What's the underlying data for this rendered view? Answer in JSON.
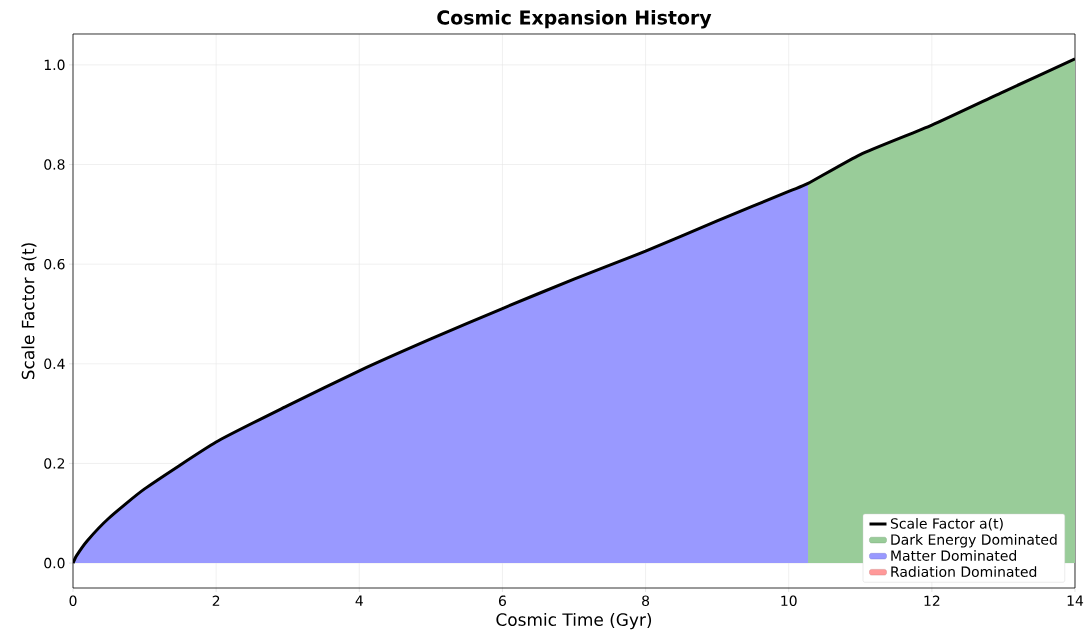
{
  "chart_data": {
    "type": "line",
    "title": "Cosmic Expansion History",
    "xlabel": "Cosmic Time (Gyr)",
    "ylabel": "Scale Factor a(t)",
    "xlim": [
      0,
      14
    ],
    "ylim": [
      -0.05,
      1.062
    ],
    "xticks": [
      0,
      2,
      4,
      6,
      8,
      10,
      12,
      14
    ],
    "yticks": [
      {
        "value": 0,
        "label": "0.0"
      },
      {
        "value": 0.2,
        "label": "0.2"
      },
      {
        "value": 0.4,
        "label": "0.4"
      },
      {
        "value": 0.6,
        "label": "0.6"
      },
      {
        "value": 0.8,
        "label": "0.8"
      },
      {
        "value": 1,
        "label": "1.0"
      }
    ],
    "grid": true,
    "legend": "bottom right",
    "marker": "none",
    "line_style": "solid",
    "series": [
      {
        "name": "Scale Factor a(t)",
        "color": "#000000",
        "x": [
          0,
          0.05,
          0.2,
          0.5,
          1,
          2,
          3,
          4,
          5,
          6,
          7,
          8,
          9,
          10,
          10.27,
          11,
          12,
          13,
          14
        ],
        "values": [
          0,
          0.015,
          0.045,
          0.09,
          0.149,
          0.243,
          0.316,
          0.386,
          0.45,
          0.511,
          0.57,
          0.626,
          0.687,
          0.746,
          0.762,
          0.82,
          0.879,
          0.946,
          1.012
        ]
      },
      {
        "name": "Dark Energy Dominated",
        "type": "area",
        "color": "#99cc99",
        "x": [
          10.27,
          11,
          12,
          13,
          14
        ],
        "values": [
          0.762,
          0.82,
          0.879,
          0.946,
          1.012
        ]
      },
      {
        "name": "Matter Dominated",
        "type": "area",
        "color": "#9999ff",
        "x": [
          0,
          0.05,
          0.2,
          0.5,
          1,
          2,
          3,
          4,
          5,
          6,
          7,
          8,
          9,
          10,
          10.27
        ],
        "values": [
          0,
          0.015,
          0.045,
          0.09,
          0.149,
          0.243,
          0.316,
          0.386,
          0.45,
          0.511,
          0.57,
          0.626,
          0.687,
          0.746,
          0.762
        ]
      },
      {
        "name": "Radiation Dominated",
        "type": "area",
        "color": "#ff9999"
      }
    ]
  }
}
